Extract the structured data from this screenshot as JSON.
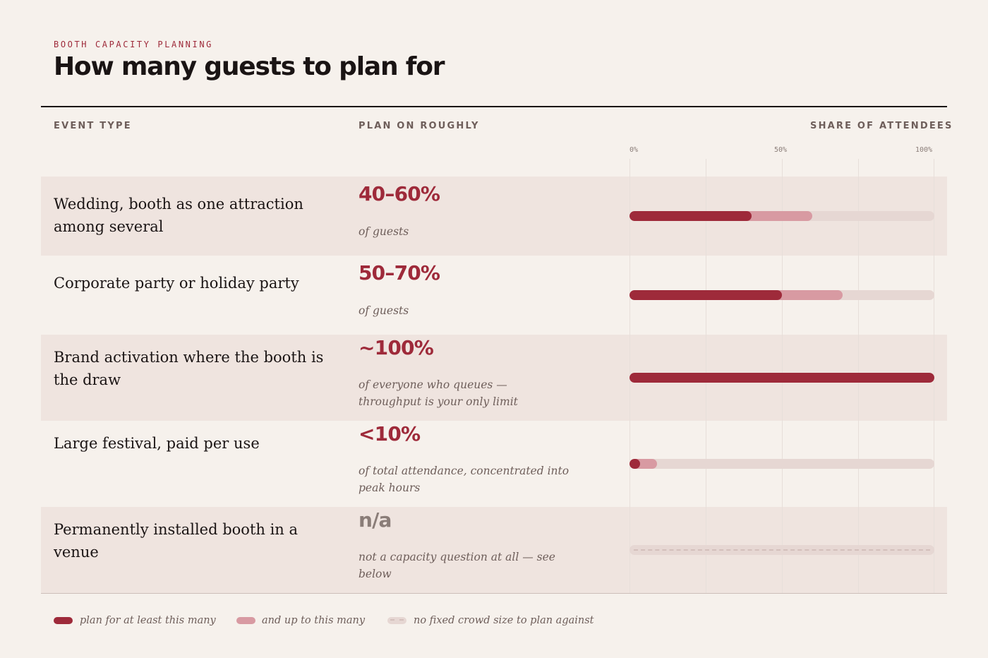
{
  "header": {
    "eyebrow": "BOOTH CAPACITY PLANNING",
    "title": "How many guests to plan for"
  },
  "columns": {
    "event": "EVENT TYPE",
    "plan": "PLAN ON ROUGHLY",
    "share": "SHARE OF ATTENDEES"
  },
  "chart_data": {
    "type": "bar",
    "orientation": "horizontal range",
    "xlabel": "SHARE OF ATTENDEES",
    "xlim": [
      0,
      100
    ],
    "x_ticks": [
      "0%",
      "50%",
      "100%"
    ],
    "grid": true,
    "legend_placement": "bottom",
    "categories": [
      "Wedding, booth as one attraction among several",
      "Corporate party or holiday party",
      "Brand activation where the booth is the draw",
      "Large festival, paid per use",
      "Permanently installed booth in a venue"
    ],
    "series": [
      {
        "name": "plan for at least this many",
        "values": [
          40,
          50,
          100,
          2,
          null
        ]
      },
      {
        "name": "and up to this many",
        "values": [
          60,
          70,
          100,
          9,
          null
        ]
      }
    ],
    "labels": [
      "40–60%",
      "50–70%",
      "~100%",
      "<10%",
      "n/a"
    ],
    "notes": [
      "of guests",
      "of guests",
      "of everyone who queues — throughput is your only limit",
      "of total attendance, concentrated into peak hours",
      "not a capacity question at all — see below"
    ]
  },
  "legend": {
    "min_label": "plan for at least this many",
    "max_label": "and up to this many",
    "none_label": "no fixed crowd size to plan against"
  },
  "colors": {
    "accent": "#9e2a3a",
    "accent_light": "#d89aa2",
    "track": "#e6d7d3",
    "background": "#f6f1ec",
    "row_shade": "#efe4df"
  }
}
